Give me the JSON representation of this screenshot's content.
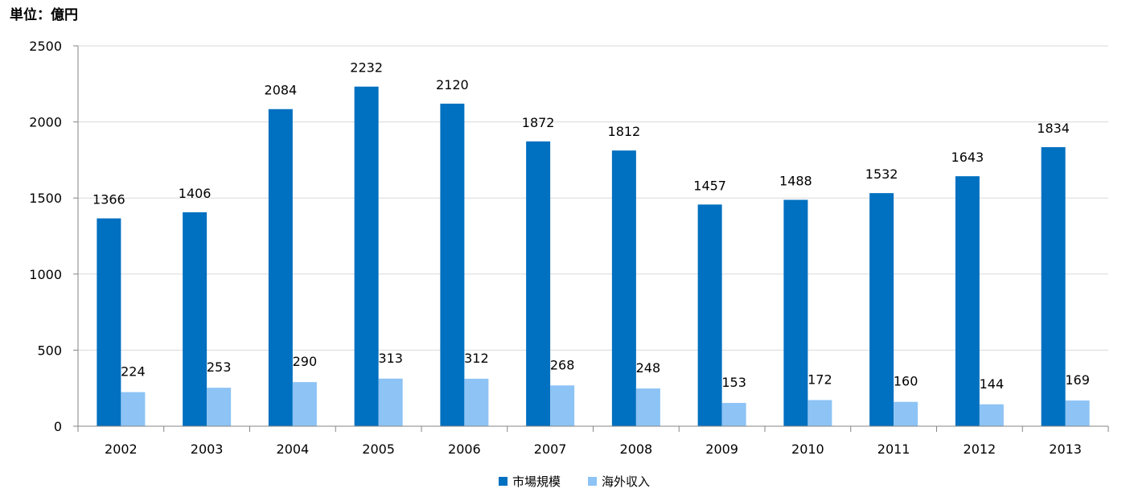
{
  "chart_data": {
    "type": "bar",
    "unit_label": "単位：億円",
    "categories": [
      "2002",
      "2003",
      "2004",
      "2005",
      "2006",
      "2007",
      "2008",
      "2009",
      "2010",
      "2011",
      "2012",
      "2013"
    ],
    "series": [
      {
        "name": "市場規模",
        "color": "#0070C0",
        "values": [
          1366,
          1406,
          2084,
          2232,
          2120,
          1872,
          1812,
          1457,
          1488,
          1532,
          1643,
          1834
        ]
      },
      {
        "name": "海外収入",
        "color": "#8DC3F5",
        "values": [
          224,
          253,
          290,
          313,
          312,
          268,
          248,
          153,
          172,
          160,
          144,
          169
        ]
      }
    ],
    "ylim": [
      0,
      2500
    ],
    "yticks": [
      0,
      500,
      1000,
      1500,
      2000,
      2500
    ],
    "grid": true,
    "legend_position": "bottom-center",
    "gridline_color": "#D9D9D9",
    "axis_color": "#868686"
  }
}
